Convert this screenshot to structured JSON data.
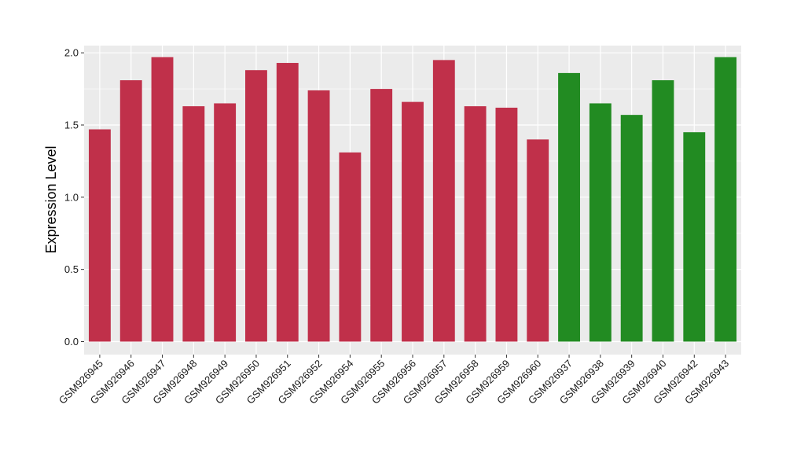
{
  "chart_data": {
    "type": "bar",
    "title": "",
    "xlabel": "",
    "ylabel": "Expression Level",
    "ylim": [
      -0.09,
      2.05
    ],
    "yticks": [
      0.0,
      0.5,
      1.0,
      1.5,
      2.0
    ],
    "ytick_labels": [
      "0.0",
      "0.5",
      "1.0",
      "1.5",
      "2.0"
    ],
    "grid": true,
    "legend": "none",
    "categories": [
      "GSM926945",
      "GSM926946",
      "GSM926947",
      "GSM926948",
      "GSM926949",
      "GSM926950",
      "GSM926951",
      "GSM926952",
      "GSM926954",
      "GSM926955",
      "GSM926956",
      "GSM926957",
      "GSM926958",
      "GSM926959",
      "GSM926960",
      "GSM926937",
      "GSM926938",
      "GSM926939",
      "GSM926940",
      "GSM926942",
      "GSM926943"
    ],
    "values": [
      1.47,
      1.81,
      1.97,
      1.63,
      1.65,
      1.88,
      1.93,
      1.74,
      1.31,
      1.75,
      1.66,
      1.95,
      1.63,
      1.62,
      1.4,
      1.86,
      1.65,
      1.57,
      1.81,
      1.45,
      1.97
    ],
    "groups": [
      "a",
      "a",
      "a",
      "a",
      "a",
      "a",
      "a",
      "a",
      "a",
      "a",
      "a",
      "a",
      "a",
      "a",
      "a",
      "b",
      "b",
      "b",
      "b",
      "b",
      "b"
    ],
    "colors": {
      "a": "#c0304a",
      "b": "#228b22"
    },
    "panel_background": "#ebebeb",
    "grid_color": "#ffffff"
  }
}
